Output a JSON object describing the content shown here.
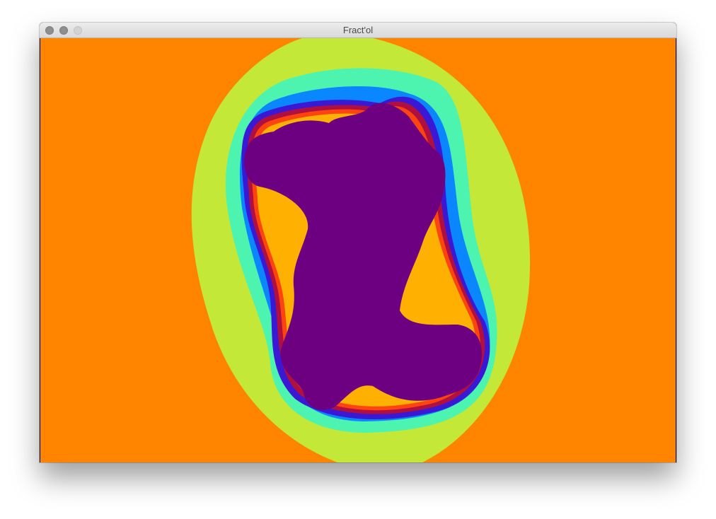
{
  "window": {
    "title": "Fract'ol"
  },
  "fractal": {
    "type": "Julia set",
    "palette": {
      "exterior": "#ff8400",
      "band1": "#c4e838",
      "band2": "#4cf4b0",
      "band3": "#0a86ff",
      "band4": "#3a18d4",
      "band5": "#b01040",
      "band6": "#ff4410",
      "band7": "#ffb000",
      "interior": "#6c0080"
    }
  }
}
